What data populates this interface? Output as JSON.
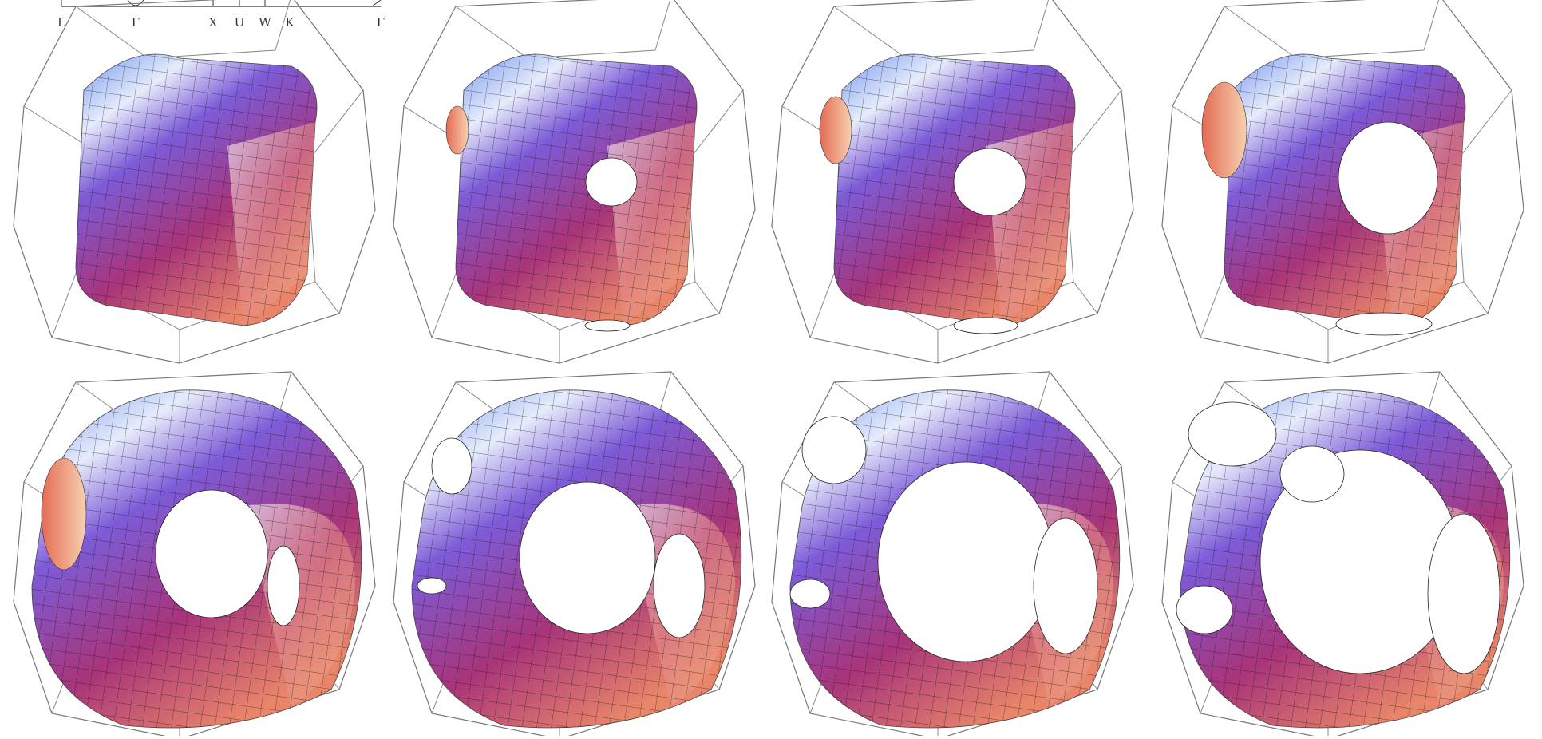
{
  "path_labels": [
    "L",
    "Γ",
    "X",
    "U",
    "W",
    "K",
    "Γ"
  ]
}
